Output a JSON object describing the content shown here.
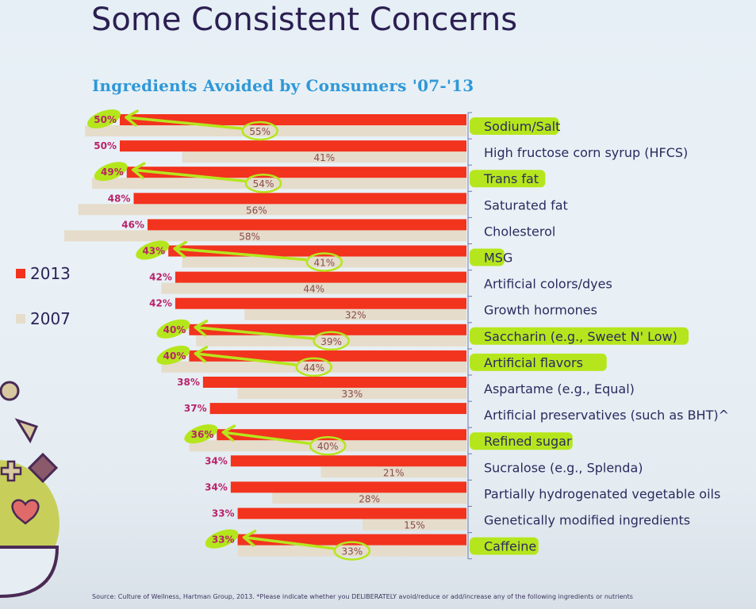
{
  "slide": {
    "title": "Some Consistent Concerns",
    "source_note": "Source: Culture of Wellness, Hartman Group, 2013. *Please indicate whether you DELIBERATELY avoid/reduce or add/increase any of the following ingredients or nutrients"
  },
  "colors": {
    "series_2013": "#f2331e",
    "series_2007": "#e5dccb",
    "highlight": "#b5e61d",
    "chart_title": "#2f98d8",
    "slide_title": "#2b1f52"
  },
  "legend": [
    {
      "label": "2013",
      "color": "#f2331e"
    },
    {
      "label": "2007",
      "color": "#e5dccb"
    }
  ],
  "chart_data": {
    "type": "bar",
    "orientation": "horizontal",
    "title": "Ingredients Avoided by Consumers '07-'13",
    "xlabel": "",
    "ylabel": "",
    "xlim": [
      0,
      60
    ],
    "grid": false,
    "legend_position": "left",
    "categories": [
      "Sodium/Salt",
      "High fructose corn syrup (HFCS)",
      "Trans fat",
      "Saturated fat",
      "Cholesterol",
      "MSG",
      "Artificial colors/dyes",
      "Growth hormones",
      "Saccharin (e.g., Sweet N' Low)",
      "Artificial flavors",
      "Aspartame (e.g., Equal)",
      "Artificial preservatives (such as BHT)^",
      "Refined sugar",
      "Sucralose (e.g., Splenda)",
      "Partially hydrogenated vegetable oils",
      "Genetically modified ingredients",
      "Caffeine"
    ],
    "series": [
      {
        "name": "2013",
        "values": [
          50,
          50,
          49,
          48,
          46,
          43,
          42,
          42,
          40,
          40,
          38,
          37,
          36,
          34,
          34,
          33,
          33
        ]
      },
      {
        "name": "2007",
        "values": [
          55,
          41,
          54,
          56,
          58,
          41,
          44,
          32,
          39,
          44,
          33,
          null,
          40,
          21,
          28,
          15,
          33
        ]
      }
    ],
    "value_labels_2013": [
      "50%",
      "50%",
      "49%",
      "48%",
      "46%",
      "43%",
      "42%",
      "42%",
      "40%",
      "40%",
      "38%",
      "37%",
      "36%",
      "34%",
      "34%",
      "33%",
      "33%"
    ],
    "value_labels_2007": [
      "55%",
      "41%",
      "54%",
      "56%",
      "58%",
      "41%",
      "44%",
      "32%",
      "39%",
      "44%",
      "33%",
      "",
      "40%",
      "21%",
      "28%",
      "15%",
      "33%"
    ],
    "annotations": {
      "highlighted_categories": [
        "Sodium/Salt",
        "Trans fat",
        "MSG",
        "Saccharin (e.g., Sweet N' Low)",
        "Artificial flavors",
        "Refined sugar",
        "Caffeine"
      ],
      "note": "Highlighted rows have circled 2007 values with arrows pointing to the 2013 values"
    }
  }
}
